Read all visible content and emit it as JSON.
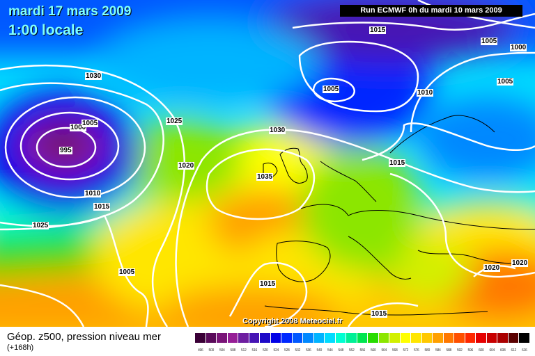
{
  "header": {
    "date": "mardi 17 mars 2009",
    "time": "1:00 locale",
    "run": "Run ECMWF 0h du mardi 10 mars 2009"
  },
  "copyright": "Copyright 2008 Meteociel.fr",
  "legend": {
    "title": "Géop. z500, pression niveau mer",
    "subtitle": "(+168h)",
    "scale": [
      {
        "v": "496",
        "c": "#3a0036"
      },
      {
        "v": "500",
        "c": "#5a0a5a"
      },
      {
        "v": "504",
        "c": "#7a1478"
      },
      {
        "v": "508",
        "c": "#961e96"
      },
      {
        "v": "512",
        "c": "#6e1ea0"
      },
      {
        "v": "516",
        "c": "#4614b4"
      },
      {
        "v": "520",
        "c": "#1e0ac8"
      },
      {
        "v": "524",
        "c": "#0000e6"
      },
      {
        "v": "528",
        "c": "#0028ff"
      },
      {
        "v": "532",
        "c": "#0058ff"
      },
      {
        "v": "536",
        "c": "#0088ff"
      },
      {
        "v": "540",
        "c": "#00b4ff"
      },
      {
        "v": "544",
        "c": "#00dcff"
      },
      {
        "v": "548",
        "c": "#00ffd2"
      },
      {
        "v": "552",
        "c": "#00f096"
      },
      {
        "v": "556",
        "c": "#00e650"
      },
      {
        "v": "560",
        "c": "#28dc00"
      },
      {
        "v": "564",
        "c": "#8ce600"
      },
      {
        "v": "568",
        "c": "#d2f000"
      },
      {
        "v": "572",
        "c": "#ffff00"
      },
      {
        "v": "576",
        "c": "#ffe600"
      },
      {
        "v": "580",
        "c": "#ffc800"
      },
      {
        "v": "584",
        "c": "#ffa000"
      },
      {
        "v": "588",
        "c": "#ff7800"
      },
      {
        "v": "592",
        "c": "#ff5000"
      },
      {
        "v": "596",
        "c": "#ff2800"
      },
      {
        "v": "600",
        "c": "#e60000"
      },
      {
        "v": "604",
        "c": "#c80000"
      },
      {
        "v": "608",
        "c": "#aa0000"
      },
      {
        "v": "612",
        "c": "#5a0000"
      },
      {
        "v": "616",
        "c": "#000000"
      }
    ]
  },
  "isobars": [
    {
      "label": "1015",
      "cls": "i1"
    },
    {
      "label": "1005",
      "cls": "i2"
    },
    {
      "label": "1000",
      "cls": "i3"
    },
    {
      "label": "1030",
      "cls": "i4"
    },
    {
      "label": "1005",
      "cls": "i5"
    },
    {
      "label": "1010",
      "cls": "i6"
    },
    {
      "label": "1005",
      "cls": "i7"
    },
    {
      "label": "1000",
      "cls": "i8"
    },
    {
      "label": "1005",
      "cls": "i9"
    },
    {
      "label": "1025",
      "cls": "i10"
    },
    {
      "label": "995",
      "cls": "i11"
    },
    {
      "label": "1030",
      "cls": "i12"
    },
    {
      "label": "1020",
      "cls": "i13"
    },
    {
      "label": "1015",
      "cls": "i14"
    },
    {
      "label": "1035",
      "cls": "i15"
    },
    {
      "label": "1010",
      "cls": "i16"
    },
    {
      "label": "1015",
      "cls": "i17"
    },
    {
      "label": "1025",
      "cls": "i18"
    },
    {
      "label": "1005",
      "cls": "i19"
    },
    {
      "label": "1015",
      "cls": "i20"
    },
    {
      "label": "1020",
      "cls": "i21"
    },
    {
      "label": "1020",
      "cls": "i22"
    },
    {
      "label": "1015",
      "cls": "i23"
    }
  ]
}
